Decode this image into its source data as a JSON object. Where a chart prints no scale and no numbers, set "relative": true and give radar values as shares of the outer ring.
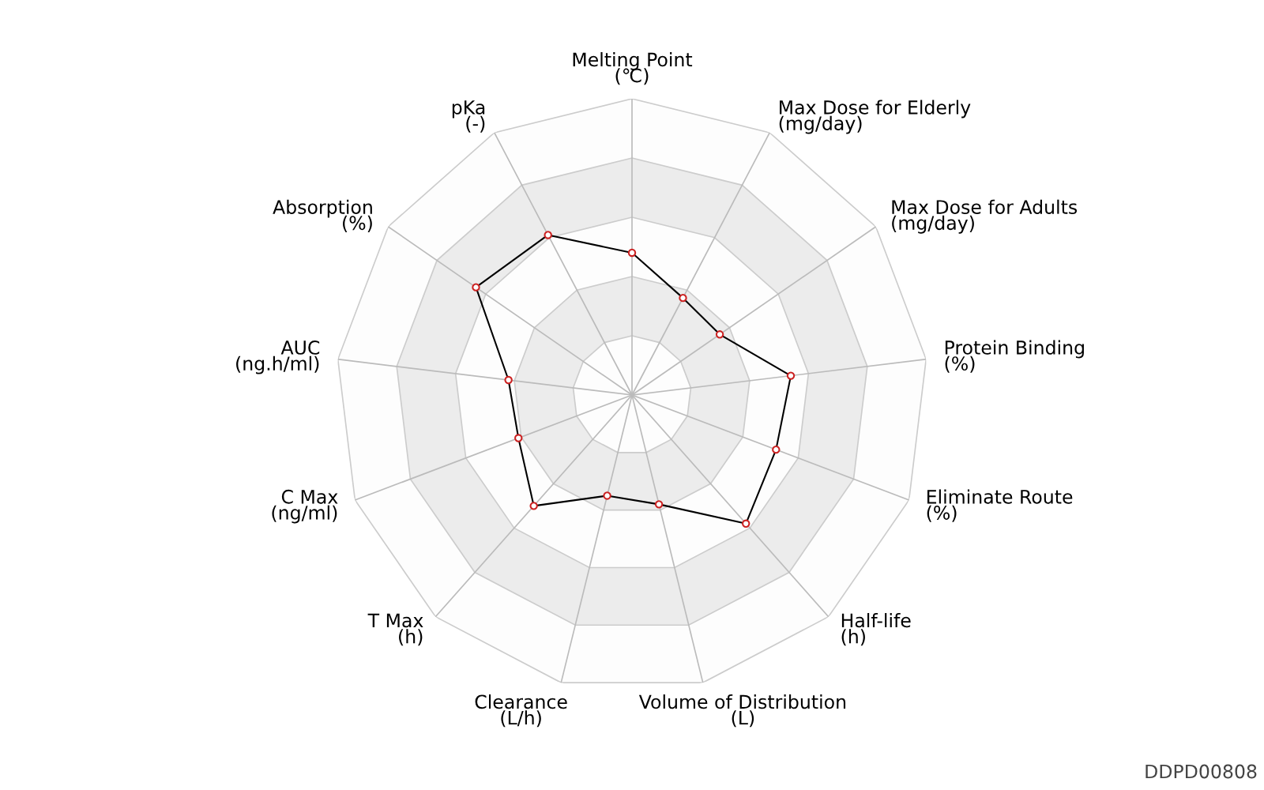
{
  "chart_data": {
    "type": "radar",
    "relative": true,
    "grid": true,
    "marker": "circle",
    "line_style": "solid",
    "categories": [
      "Melting Point\n(℃)",
      "Max Dose for Elderly\n(mg/day)",
      "Max Dose for Adults\n(mg/day)",
      "Protein Binding\n(%)",
      "Eliminate Route\n(%)",
      "Half-life\n(h)",
      "Volume of Distribution\n(L)",
      "Clearance\n(L/h)",
      "T Max\n(h)",
      "C Max\n(ng/ml)",
      "AUC\n(ng.h/ml)",
      "Absorption\n(%)",
      "pKa\n(-)"
    ],
    "series": [
      {
        "color": "#000000",
        "values": [
          0.48,
          0.37,
          0.36,
          0.54,
          0.52,
          0.58,
          0.38,
          0.35,
          0.5,
          0.41,
          0.42,
          0.64,
          0.61
        ]
      }
    ],
    "annotations": [
      "DDPD00808"
    ]
  }
}
